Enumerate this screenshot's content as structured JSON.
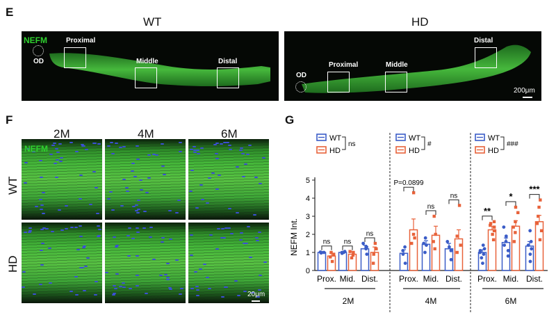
{
  "panel_e": {
    "letter": "E",
    "wt_title": "WT",
    "hd_title": "HD",
    "nefm_label": "NEFM",
    "od_label": "OD",
    "wt_regions": [
      "Proximal",
      "Middle",
      "Distal"
    ],
    "hd_regions": [
      "Proximal",
      "Middle",
      "Distal"
    ],
    "scale_label": "200μm",
    "colors": {
      "fiber": "#3fbf3a",
      "nuclei": "#3b4fd6",
      "background": "#050805"
    }
  },
  "panel_f": {
    "letter": "F",
    "ages": [
      "2M",
      "4M",
      "6M"
    ],
    "rows": [
      "WT",
      "HD"
    ],
    "nefm_label": "NEFM",
    "scale_label": "20μm"
  },
  "panel_g": {
    "letter": "G",
    "ylabel": "NEFM Int.",
    "legend_wt": "WT",
    "legend_hd": "HD",
    "legend_stats": [
      "ns",
      "#",
      "###"
    ],
    "colors": {
      "wt": "#3a5cc7",
      "hd": "#e8623a"
    }
  },
  "chart_data": {
    "type": "bar",
    "ylabel": "NEFM Int.",
    "ylim": [
      0,
      5
    ],
    "yticks": [
      0,
      1,
      2,
      3,
      4,
      5
    ],
    "region_labels": [
      "Prox.",
      "Mid.",
      "Dist."
    ],
    "ages": [
      "2M",
      "4M",
      "6M"
    ],
    "series_names": [
      "WT",
      "HD"
    ],
    "groups": [
      {
        "age": "2M",
        "region": "Prox.",
        "wt": 1.0,
        "hd": 0.8,
        "wt_err": 0.05,
        "hd_err": 0.15,
        "sig": "ns",
        "wt_points": [
          0.98,
          1.02,
          1.0,
          0.97
        ],
        "hd_points": [
          0.5,
          0.75,
          0.9,
          1.0
        ]
      },
      {
        "age": "2M",
        "region": "Mid.",
        "wt": 1.0,
        "hd": 0.9,
        "wt_err": 0.05,
        "hd_err": 0.15,
        "sig": "ns",
        "wt_points": [
          0.95,
          1.0,
          1.05,
          1.0
        ],
        "hd_points": [
          0.7,
          0.85,
          1.0,
          1.05
        ]
      },
      {
        "age": "2M",
        "region": "Dist.",
        "wt": 1.2,
        "hd": 1.0,
        "wt_err": 0.2,
        "hd_err": 0.3,
        "sig": "ns",
        "wt_points": [
          0.9,
          1.2,
          1.3,
          1.5
        ],
        "hd_points": [
          0.4,
          0.9,
          1.2,
          1.5
        ]
      },
      {
        "age": "4M",
        "region": "Prox.",
        "wt": 0.95,
        "hd": 2.25,
        "wt_err": 0.2,
        "hd_err": 0.6,
        "sig": "P=0.0899",
        "wt_points": [
          0.4,
          0.9,
          1.1,
          1.3
        ],
        "hd_points": [
          1.5,
          1.8,
          2.0,
          4.3
        ]
      },
      {
        "age": "4M",
        "region": "Mid.",
        "wt": 1.45,
        "hd": 1.95,
        "wt_err": 0.2,
        "hd_err": 0.5,
        "sig": "ns",
        "wt_points": [
          1.0,
          1.4,
          1.5,
          1.8
        ],
        "hd_points": [
          1.2,
          1.6,
          2.0,
          3.0
        ]
      },
      {
        "age": "4M",
        "region": "Dist.",
        "wt": 1.2,
        "hd": 1.75,
        "wt_err": 0.3,
        "hd_err": 0.5,
        "sig": "ns",
        "wt_points": [
          0.6,
          1.1,
          1.3,
          1.6
        ],
        "hd_points": [
          1.0,
          1.4,
          1.9,
          3.6
        ]
      },
      {
        "age": "6M",
        "region": "Prox.",
        "wt": 1.0,
        "hd": 2.25,
        "wt_err": 0.15,
        "hd_err": 0.2,
        "sig": "**",
        "wt_points": [
          0.4,
          0.7,
          0.9,
          1.0,
          1.1,
          1.2,
          1.4
        ],
        "hd_points": [
          1.7,
          2.0,
          2.2,
          2.4,
          2.5,
          2.6,
          2.7
        ]
      },
      {
        "age": "6M",
        "region": "Mid.",
        "wt": 1.55,
        "hd": 2.45,
        "wt_err": 0.25,
        "hd_err": 0.3,
        "sig": "*",
        "wt_points": [
          0.8,
          1.1,
          1.4,
          1.6,
          1.9,
          2.4
        ],
        "hd_points": [
          1.6,
          2.1,
          2.4,
          2.7,
          3.2,
          3.5
        ]
      },
      {
        "age": "6M",
        "region": "Dist.",
        "wt": 1.35,
        "hd": 2.7,
        "wt_err": 0.25,
        "hd_err": 0.35,
        "sig": "***",
        "wt_points": [
          0.5,
          0.9,
          1.2,
          1.4,
          1.6,
          2.2
        ],
        "hd_points": [
          1.7,
          2.2,
          2.6,
          3.0,
          3.5,
          3.9
        ]
      }
    ]
  }
}
